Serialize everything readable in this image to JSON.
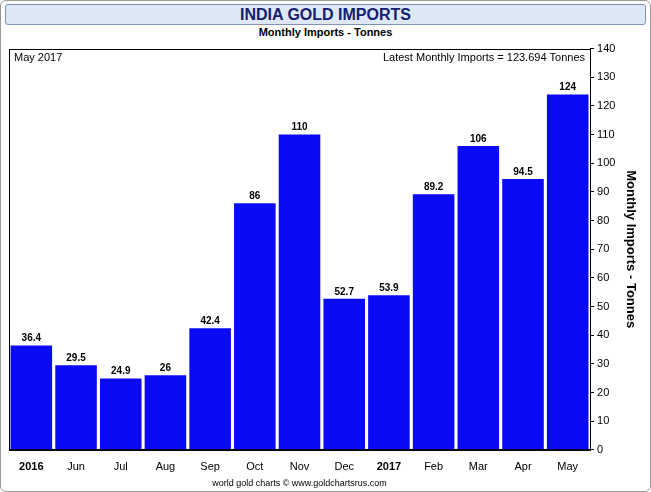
{
  "chart_data": {
    "type": "bar",
    "title": "INDIA GOLD IMPORTS",
    "subtitle": "Monthly Imports - Tonnes",
    "annotations": [
      "May 2017",
      "Latest Monthly Imports = 123.694 Tonnes",
      "world gold charts © www.goldchartsrus.com"
    ],
    "y_label": "Monthly Imports - Tonnes",
    "categories": [
      "2016",
      "Jun",
      "Jul",
      "Aug",
      "Sep",
      "Oct",
      "Nov",
      "Dec",
      "2017",
      "Feb",
      "Mar",
      "Apr",
      "May"
    ],
    "values": [
      36.4,
      29.5,
      24.9,
      26,
      42.4,
      86,
      110,
      52.7,
      53.9,
      89.2,
      106,
      94.5,
      124
    ],
    "color": "#0a0af5",
    "ylim": [
      0,
      140
    ],
    "yticks": [
      0,
      10,
      20,
      30,
      40,
      50,
      60,
      70,
      80,
      90,
      100,
      110,
      120,
      130,
      140
    ],
    "grid": false,
    "data_labels": true
  }
}
